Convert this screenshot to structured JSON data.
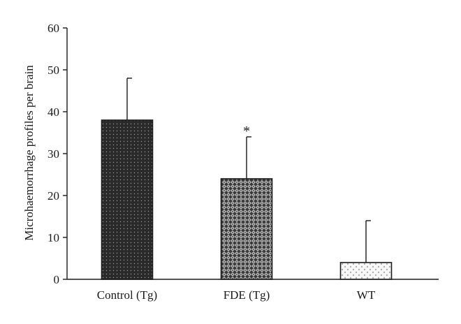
{
  "chart_data": {
    "type": "bar",
    "title": "",
    "xlabel": "",
    "ylabel": "Microhaemorrhage profiles per brain",
    "ylim": [
      0,
      60
    ],
    "yticks": [
      0,
      10,
      20,
      30,
      40,
      50,
      60
    ],
    "grid": false,
    "categories": [
      "Control (Tg)",
      "FDE (Tg)",
      "WT"
    ],
    "values": [
      38,
      24,
      4
    ],
    "error_upper": [
      48,
      34,
      14
    ],
    "annotations": [
      "",
      "*",
      ""
    ],
    "bar_patterns": [
      "dense-dots-dark",
      "crosshatch-dark",
      "sparse-dots-light"
    ]
  }
}
